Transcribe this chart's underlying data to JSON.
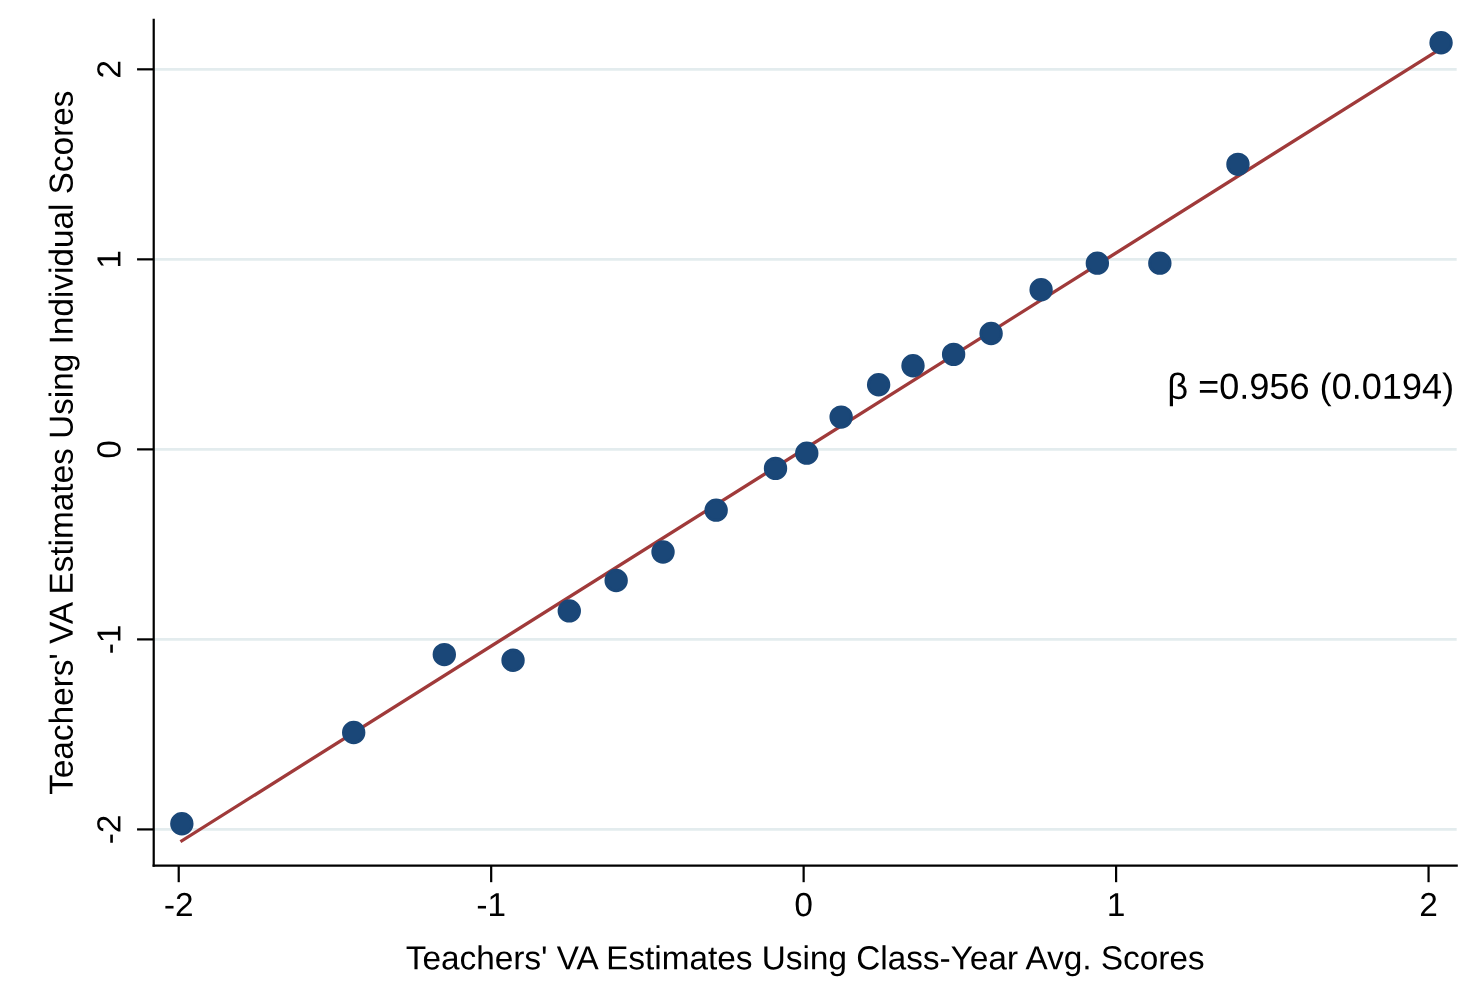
{
  "chart_data": {
    "type": "scatter",
    "xlabel": "Teachers' VA Estimates Using Class-Year Avg. Scores",
    "ylabel": "Teachers' VA Estimates Using Individual Scores",
    "xlim": [
      -2.08,
      2.09
    ],
    "ylim": [
      -2.19,
      2.26
    ],
    "xticks": [
      -2,
      -1,
      0,
      1,
      2
    ],
    "yticks": [
      -2,
      -1,
      0,
      1,
      2
    ],
    "grid": "y",
    "annotations": [
      "β =0.956 (0.0194)"
    ],
    "series": [
      {
        "marker": "circle",
        "color": "#1a4778",
        "x": [
          -1.99,
          -1.44,
          -1.15,
          -0.93,
          -0.75,
          -0.6,
          -0.45,
          -0.28,
          -0.09,
          0.01,
          0.12,
          0.24,
          0.35,
          0.48,
          0.6,
          0.76,
          0.94,
          1.14,
          1.39,
          2.04
        ],
        "values": [
          -1.97,
          -1.49,
          -1.08,
          -1.11,
          -0.85,
          -0.69,
          -0.54,
          -0.32,
          -0.1,
          -0.02,
          0.17,
          0.34,
          0.44,
          0.5,
          0.61,
          0.84,
          0.98,
          0.98,
          1.5,
          2.14
        ]
      },
      {
        "type": "line",
        "marker": "none",
        "color": "#a03a3a",
        "x": [
          -1.99,
          2.04
        ],
        "values": [
          -2.06,
          2.11
        ]
      }
    ]
  }
}
